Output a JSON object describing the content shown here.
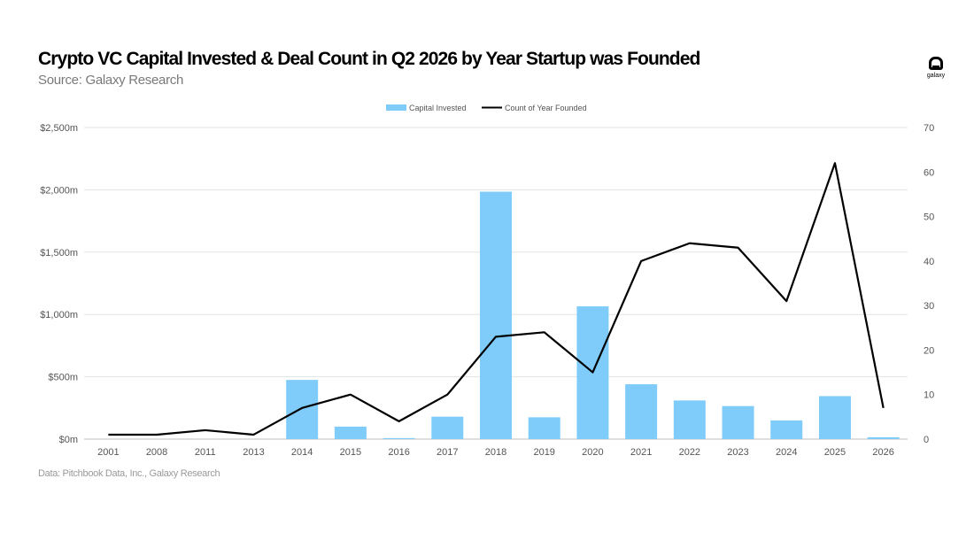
{
  "header": {
    "title": "Crypto VC Capital Invested & Deal Count in Q2 2026 by Year Startup was Founded",
    "subtitle": "Source: Galaxy Research"
  },
  "logo": {
    "text": "galaxy",
    "icon": "galaxy-logo-icon"
  },
  "footer": {
    "note": "Data: Pitchbook Data, Inc., Galaxy Research"
  },
  "colors": {
    "bar": "#7fccfb",
    "line": "#000000",
    "grid": "#e3e3e3",
    "axis_text": "#555555"
  },
  "chart_data": {
    "type": "bar",
    "title": "Crypto VC Capital Invested & Deal Count in Q2 2026 by Year Startup was Founded",
    "categories": [
      "2001",
      "2008",
      "2011",
      "2013",
      "2014",
      "2015",
      "2016",
      "2017",
      "2018",
      "2019",
      "2020",
      "2021",
      "2022",
      "2023",
      "2024",
      "2025",
      "2026"
    ],
    "series": [
      {
        "name": "Capital Invested",
        "type": "bar",
        "axis": "left",
        "values": [
          0,
          0,
          0,
          0,
          475,
          100,
          8,
          180,
          1985,
          175,
          1065,
          440,
          310,
          265,
          150,
          345,
          15
        ]
      },
      {
        "name": "Count of Year Founded",
        "type": "line",
        "axis": "right",
        "values": [
          1,
          1,
          2,
          1,
          7,
          10,
          4,
          10,
          23,
          24,
          15,
          40,
          44,
          43,
          31,
          62,
          7
        ]
      }
    ],
    "y_left": {
      "ticks": [
        0,
        500,
        1000,
        1500,
        2000,
        2500
      ],
      "tick_labels": [
        "$0m",
        "$500m",
        "$1,000m",
        "$1,500m",
        "$2,000m",
        "$2,500m"
      ],
      "range": [
        0,
        2500
      ]
    },
    "y_right": {
      "ticks": [
        0,
        10,
        20,
        30,
        40,
        50,
        60,
        70
      ],
      "tick_labels": [
        "0",
        "10",
        "20",
        "30",
        "40",
        "50",
        "60",
        "70"
      ],
      "range": [
        0,
        70
      ]
    },
    "legend": {
      "placement": "top-center",
      "entries": [
        "Capital Invested",
        "Count of Year Founded"
      ]
    },
    "grid": true
  }
}
